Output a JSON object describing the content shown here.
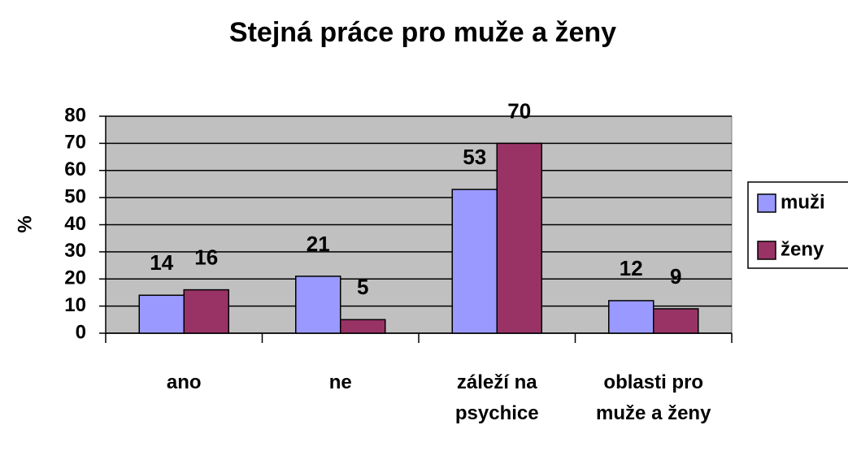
{
  "chart_data": {
    "type": "bar",
    "title": "Stejná práce pro muže a ženy",
    "y_label": "%",
    "categories": [
      "ano",
      "ne",
      "záleží na psychice",
      "oblasti pro muže a ženy"
    ],
    "series": [
      {
        "name": "muži",
        "color": "#9999ff",
        "values": [
          14,
          21,
          53,
          12
        ]
      },
      {
        "name": "ženy",
        "color": "#993366",
        "values": [
          16,
          5,
          70,
          9
        ]
      }
    ],
    "ylim": [
      0,
      80
    ],
    "yticks": [
      0,
      10,
      20,
      30,
      40,
      50,
      60,
      70,
      80
    ],
    "grid": true,
    "legend": "right"
  }
}
